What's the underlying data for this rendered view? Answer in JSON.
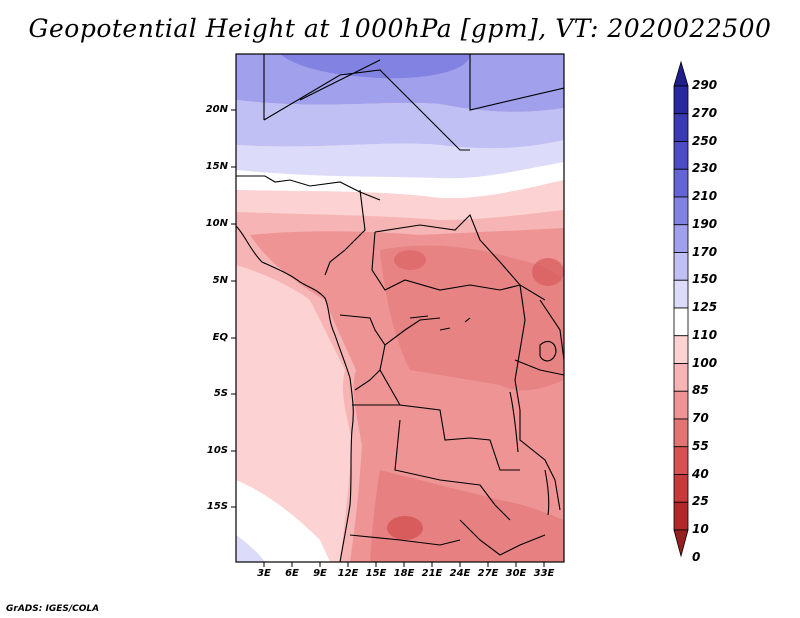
{
  "title": "Geopotential Height at 1000hPa [gpm], VT: 2020022500",
  "credit": "GrADS: IGES/COLA",
  "map": {
    "variable": "Geopotential Height",
    "level": "1000hPa",
    "units": "gpm",
    "valid_time": "2020022500",
    "lat_labels": [
      "20N",
      "15N",
      "10N",
      "5N",
      "EQ",
      "5S",
      "10S",
      "15S"
    ],
    "lon_labels": [
      "3E",
      "6E",
      "9E",
      "12E",
      "15E",
      "18E",
      "21E",
      "24E",
      "27E",
      "30E",
      "33E"
    ]
  },
  "colorbar": {
    "levels": [
      "290",
      "270",
      "250",
      "230",
      "210",
      "190",
      "170",
      "150",
      "125",
      "110",
      "100",
      "85",
      "70",
      "55",
      "40",
      "25",
      "10",
      "0"
    ],
    "colors": [
      "#1e1e8c",
      "#2828a0",
      "#3a3ab4",
      "#4c4cc6",
      "#6464d6",
      "#8282e2",
      "#a0a0ec",
      "#c0c0f4",
      "#dcdcfa",
      "#ffffff",
      "#fcd2d2",
      "#f6b4b4",
      "#ee9494",
      "#e27474",
      "#d65252",
      "#c63a3a",
      "#b02828",
      "#962020"
    ]
  },
  "colors": {
    "frame": "#000000",
    "ocean_pink": "#fcd2d2",
    "land_red": "#ee9494",
    "north_blue": "#a0a0ec"
  }
}
